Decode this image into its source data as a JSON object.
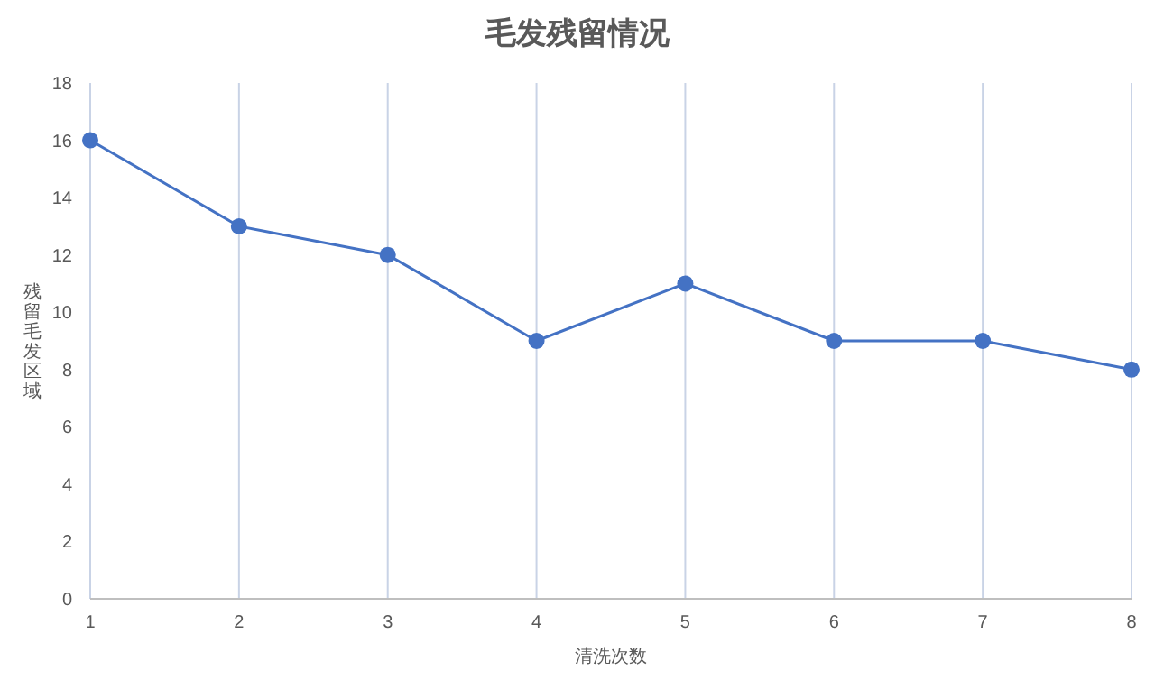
{
  "chart_data": {
    "type": "line",
    "title": "毛发残留情况",
    "xlabel": "清洗次数",
    "ylabel": "残留毛发区域",
    "x": [
      1,
      2,
      3,
      4,
      5,
      6,
      7,
      8
    ],
    "series": [
      {
        "color": "#4472c4",
        "values": [
          16,
          13,
          12,
          9,
          11,
          9,
          9,
          8
        ]
      }
    ],
    "xlim": [
      1,
      8
    ],
    "xticks": [
      1,
      2,
      3,
      4,
      5,
      6,
      7,
      8
    ],
    "ylim": [
      0,
      18
    ],
    "yticks": [
      0,
      2,
      4,
      6,
      8,
      10,
      12,
      14,
      16,
      18
    ],
    "grid": "x",
    "marker": "circle",
    "line_style": "solid"
  }
}
